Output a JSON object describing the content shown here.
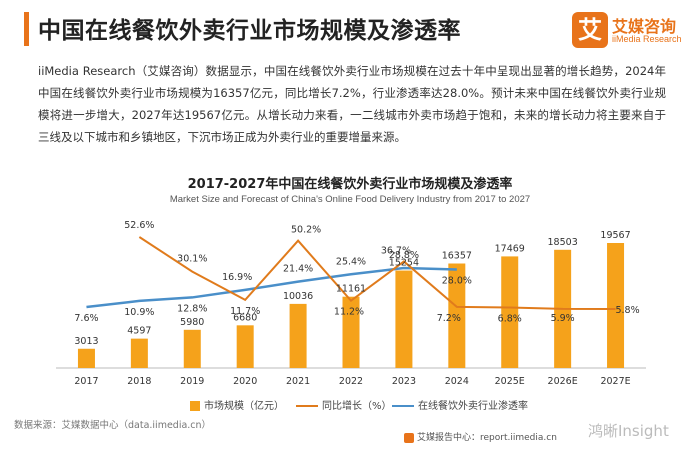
{
  "header": {
    "title": "中国在线餐饮外卖行业市场规模及渗透率",
    "logo_icon": "艾",
    "logo_cn": "艾媒咨询",
    "logo_en": "iiMedia Research"
  },
  "description": "iiMedia Research（艾媒咨询）数据显示，中国在线餐饮外卖行业市场规模在过去十年中呈现出显著的增长趋势，2024年中国在线餐饮外卖行业市场规模为16357亿元，同比增长7.2%，行业渗透率达28.0%。预计未来中国在线餐饮外卖行业规模将进一步增大，2027年达19567亿元。从增长动力来看，一二线城市外卖市场趋于饱和，未来的增长动力将主要来自于三线及以下城市和乡镇地区，下沉市场正成为外卖行业的重要增量来源。",
  "chart_data": {
    "type": "bar",
    "title": "2017-2027年中国在线餐饮外卖行业市场规模及渗透率",
    "subtitle": "Market Size and Forecast of China's Online Food Delivery Industry from 2017 to 2027",
    "categories": [
      "2017",
      "2018",
      "2019",
      "2020",
      "2021",
      "2022",
      "2023",
      "2024",
      "2025E",
      "2026E",
      "2027E"
    ],
    "series": [
      {
        "name": "市场规模（亿元）",
        "type": "bar",
        "color": "#f5a21b",
        "values": [
          3013,
          4597,
          5980,
          6680,
          10036,
          11161,
          15254,
          16357,
          17469,
          18503,
          19567
        ],
        "labels": [
          "3013",
          "4597",
          "5980",
          "6680",
          "10036",
          "11161",
          "15254",
          "16357",
          "17469",
          "18503",
          "19567"
        ]
      },
      {
        "name": "同比增长（%）",
        "type": "line",
        "color": "#e07b1c",
        "values": [
          null,
          52.6,
          30.1,
          11.7,
          50.2,
          11.2,
          36.7,
          7.2,
          6.8,
          5.9,
          5.8
        ],
        "labels": [
          "",
          "52.6%",
          "30.1%",
          "11.7%",
          "50.2%",
          "11.2%",
          "36.7%",
          "7.2%",
          "6.8%",
          "5.9%",
          "5.8%"
        ]
      },
      {
        "name": "在线餐饮外卖行业渗透率",
        "type": "line",
        "color": "#4a8fc9",
        "values": [
          7.6,
          10.9,
          12.8,
          16.9,
          21.4,
          25.4,
          28.8,
          28.0,
          null,
          null,
          null
        ],
        "labels": [
          "7.6%",
          "10.9%",
          "12.8%",
          "16.9%",
          "21.4%",
          "25.4%",
          "28.8%",
          "28.0%",
          "",
          "",
          ""
        ]
      }
    ],
    "legend_position": "bottom",
    "grid": false
  },
  "footer": {
    "source": "数据来源：艾媒数据中心（data.iimedia.cn）",
    "report": "艾媒报告中心：report.iimedia.cn",
    "watermark": "鸿晰Insight"
  }
}
